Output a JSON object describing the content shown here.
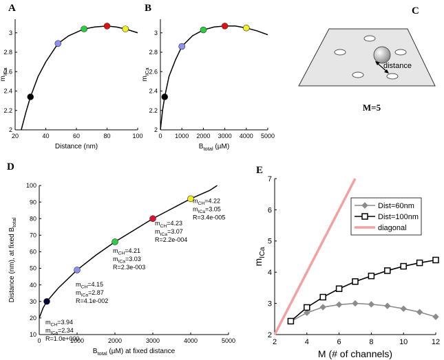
{
  "panel_c": {
    "label": "C",
    "annotation": "distance",
    "caption": "M=5"
  },
  "chart_data": [
    {
      "type": "line",
      "panel": "A",
      "xlabel": [
        {
          "t": "Distance (nm)"
        }
      ],
      "ylabel": [
        {
          "t": "m"
        },
        {
          "sub": "ICa"
        }
      ],
      "xlim": [
        20,
        100
      ],
      "xticks": [
        20,
        40,
        60,
        80,
        100
      ],
      "ylim": [
        2,
        3.14
      ],
      "yticks": [
        2,
        2.2,
        2.4,
        2.6,
        2.8,
        3
      ],
      "line": {
        "color": "#000000",
        "x": [
          24,
          27,
          30,
          35,
          40,
          48,
          55,
          65,
          72,
          80,
          86,
          92,
          100
        ],
        "y": [
          2,
          2.18,
          2.34,
          2.55,
          2.7,
          2.89,
          2.97,
          3.04,
          3.06,
          3.07,
          3.06,
          3.04,
          3.0
        ]
      },
      "points": {
        "x": [
          30,
          48,
          65,
          80,
          92
        ],
        "y": [
          2.34,
          2.89,
          3.04,
          3.07,
          3.04
        ],
        "colors": [
          "#000000",
          "#8f8ff0",
          "#2ecc40",
          "#e01010",
          "#f0f020"
        ]
      }
    },
    {
      "type": "line",
      "panel": "B",
      "xlabel": [
        {
          "t": "B"
        },
        {
          "sub": "total"
        },
        {
          "t": " (µM)"
        }
      ],
      "ylabel": [
        {
          "t": "m"
        },
        {
          "sub": "ICa"
        }
      ],
      "xlim": [
        0,
        5000
      ],
      "xticks": [
        0,
        1000,
        2000,
        3000,
        4000,
        5000
      ],
      "ylim": [
        2,
        3.14
      ],
      "yticks": [
        2,
        2.2,
        2.4,
        2.6,
        2.8,
        3
      ],
      "line": {
        "color": "#000000",
        "x": [
          0,
          100,
          200,
          400,
          700,
          1000,
          1500,
          2000,
          2500,
          3000,
          3500,
          4000,
          4500,
          5000
        ],
        "y": [
          2,
          2.2,
          2.34,
          2.55,
          2.72,
          2.86,
          2.97,
          3.03,
          3.06,
          3.07,
          3.07,
          3.05,
          3.02,
          2.98
        ]
      },
      "points": {
        "x": [
          200,
          1000,
          2000,
          3000,
          4000
        ],
        "y": [
          2.34,
          2.86,
          3.03,
          3.07,
          3.05
        ],
        "colors": [
          "#000000",
          "#8f8ff0",
          "#2ecc40",
          "#e01010",
          "#f0f020"
        ]
      }
    },
    {
      "type": "line",
      "panel": "D",
      "xlabel": [
        {
          "t": "B"
        },
        {
          "sub": "total"
        },
        {
          "t": " (µM) at fixed distance"
        }
      ],
      "ylabel": [
        {
          "t": "Distance (nm), at fixed B"
        },
        {
          "sub": "total"
        }
      ],
      "xlim": [
        0,
        5000
      ],
      "xticks": [
        0,
        1000,
        2000,
        3000,
        4000,
        5000
      ],
      "ylim": [
        10,
        100
      ],
      "yticks": [
        10,
        20,
        30,
        40,
        50,
        60,
        70,
        80,
        90,
        100
      ],
      "line": {
        "color": "#000000",
        "x": [
          0,
          100,
          200,
          500,
          1000,
          1500,
          2000,
          2500,
          3000,
          3500,
          4000,
          4500,
          4700
        ],
        "y": [
          20,
          26,
          30,
          38,
          49,
          58,
          66,
          73,
          80,
          86,
          92,
          97,
          100
        ]
      },
      "points": {
        "x": [
          200,
          1000,
          2000,
          3000,
          4000
        ],
        "y": [
          30,
          49,
          66,
          80,
          92
        ],
        "colors": [
          "#000033",
          "#8f8ff0",
          "#2ecc40",
          "#e01030",
          "#f0f020"
        ]
      },
      "annotations": [
        [
          [
            {
              "t": "m"
            },
            {
              "sub": "CH"
            },
            {
              "t": "=3.94"
            }
          ],
          [
            {
              "t": "m"
            },
            {
              "sub": "ICa"
            },
            {
              "t": "=2.34"
            }
          ],
          [
            {
              "t": "R=1.0e+000"
            }
          ]
        ],
        [
          [
            {
              "t": "m"
            },
            {
              "sub": "CH"
            },
            {
              "t": "=4.15"
            }
          ],
          [
            {
              "t": "m"
            },
            {
              "sub": "ICa"
            },
            {
              "t": "=2.87"
            }
          ],
          [
            {
              "t": "R=4.1e-002"
            }
          ]
        ],
        [
          [
            {
              "t": "m"
            },
            {
              "sub": "CH"
            },
            {
              "t": "=4.21"
            }
          ],
          [
            {
              "t": "m"
            },
            {
              "sub": "ICa"
            },
            {
              "t": "=3.03"
            }
          ],
          [
            {
              "t": "R=2.3e-003"
            }
          ]
        ],
        [
          [
            {
              "t": "m"
            },
            {
              "sub": "CH"
            },
            {
              "t": "=4.23"
            }
          ],
          [
            {
              "t": "m"
            },
            {
              "sub": "ICa"
            },
            {
              "t": "=3.07"
            }
          ],
          [
            {
              "t": "R=2.2e-004"
            }
          ]
        ],
        [
          [
            {
              "t": "m"
            },
            {
              "sub": "CH"
            },
            {
              "t": "=4.22"
            }
          ],
          [
            {
              "t": "m"
            },
            {
              "sub": "ICa"
            },
            {
              "t": "=3.05"
            }
          ],
          [
            {
              "t": "R=3.4e-005"
            }
          ]
        ]
      ]
    },
    {
      "type": "line",
      "panel": "E",
      "xlabel": [
        {
          "t": "M (# of channels)"
        }
      ],
      "ylabel": [
        {
          "t": "m"
        },
        {
          "sub": "ICa"
        }
      ],
      "xlim": [
        2,
        12
      ],
      "xticks": [
        2,
        4,
        6,
        8,
        10,
        12
      ],
      "ylim": [
        2,
        7
      ],
      "yticks": [
        2,
        3,
        4,
        5,
        6,
        7
      ],
      "legend": "upper right",
      "series": [
        {
          "name": "Dist=60nm",
          "color": "#8c8c8c",
          "marker": "diamond",
          "x": [
            3,
            4,
            5,
            6,
            7,
            8,
            9,
            10,
            11,
            12
          ],
          "values": [
            2.42,
            2.7,
            2.88,
            2.96,
            3.0,
            2.97,
            2.92,
            2.83,
            2.72,
            2.57
          ]
        },
        {
          "name": "Dist=100nm",
          "color": "#000000",
          "marker": "square",
          "x": [
            3,
            4,
            5,
            6,
            7,
            8,
            9,
            10,
            11,
            12
          ],
          "values": [
            2.43,
            2.87,
            3.2,
            3.47,
            3.7,
            3.88,
            4.05,
            4.19,
            4.3,
            4.39
          ]
        },
        {
          "name": "diagonal",
          "color": "#f4a0a0",
          "marker": null,
          "x": [
            2,
            7
          ],
          "values": [
            2,
            7
          ]
        }
      ]
    }
  ]
}
